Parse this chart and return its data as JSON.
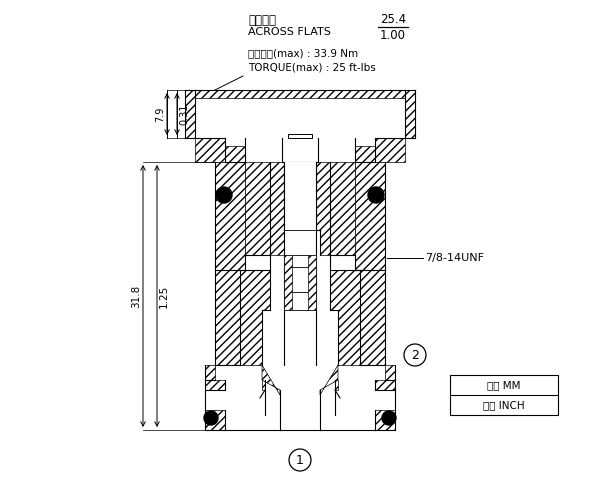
{
  "bg_color": "#ffffff",
  "line_color": "#000000",
  "fig_width": 6.0,
  "fig_height": 4.83,
  "annotations": {
    "across_flats_cn": "對還寬度",
    "across_flats_en": "ACROSS FLATS",
    "across_flats_val_mm": "25.4",
    "across_flats_val_in": "1.00",
    "torque_cn": "安装扆矩(max) : 33.9 Nm",
    "torque_en": "TORQUE(max) : 25 ft-lbs",
    "thread": "7/8-14UNF",
    "dim1_mm": "7.9",
    "dim1_in": "0.31",
    "dim2_mm": "31.8",
    "dim2_in": "1.25",
    "circle1": "1",
    "circle2": "2",
    "unit_mm": "毫米 MM",
    "unit_in": "英寸 INCH"
  }
}
